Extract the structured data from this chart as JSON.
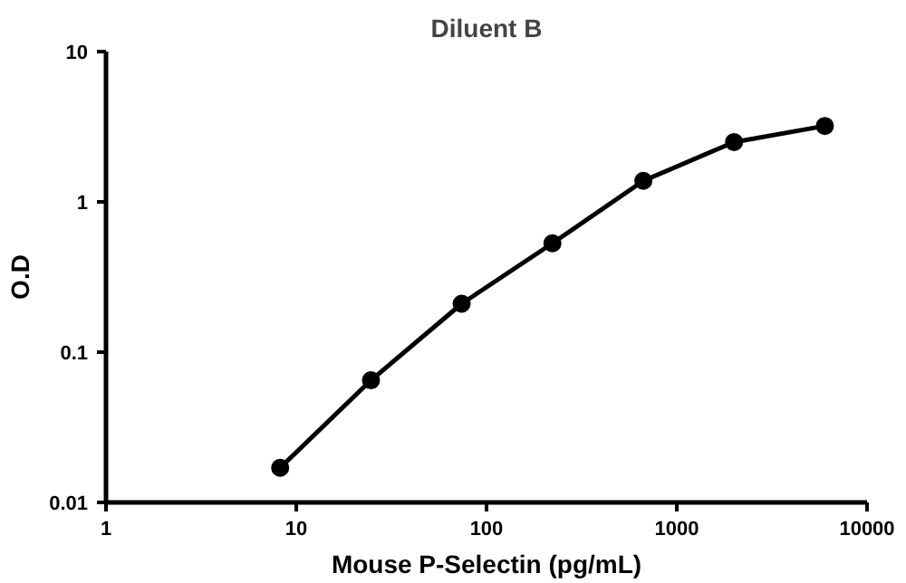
{
  "chart_data": {
    "type": "line",
    "title": "Diluent B",
    "xlabel": "Mouse P-Selectin (pg/mL)",
    "ylabel": "O.D",
    "log": "xy",
    "x": [
      8.23,
      24.7,
      74,
      222,
      667,
      2000,
      6000
    ],
    "series": [
      {
        "color": "#000000",
        "values": [
          0.017,
          0.065,
          0.21,
          0.53,
          1.38,
          2.5,
          3.2
        ]
      }
    ],
    "xlim": [
      1,
      10000
    ],
    "xticks": [
      1,
      10,
      100,
      1000,
      10000
    ],
    "ylim": [
      0.01,
      10
    ],
    "yticks": [
      {
        "value": 0.01,
        "label": "0.01"
      },
      {
        "value": 0.1,
        "label": "0.1"
      },
      1,
      10
    ],
    "marker": "circle",
    "line_style": "solid"
  }
}
